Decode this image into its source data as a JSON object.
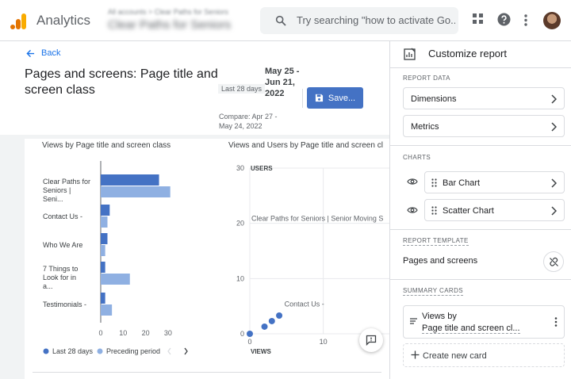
{
  "app": {
    "title": "Analytics",
    "account_crumb": "All accounts > Clear Paths for Seniors",
    "property_name": "Clear Paths for Seniors",
    "search_placeholder": "Try searching \"how to activate Go...",
    "icons": {
      "logo": "analytics-logo",
      "search": "search-icon",
      "apps": "apps-grid-icon",
      "help": "help-icon",
      "more": "more-vert-icon"
    },
    "accent_color": "#1a73e8"
  },
  "header": {
    "back_label": "Back",
    "page_title": "Pages and screens: Page title and screen class",
    "range_chip": "Last 28 days",
    "date_range": "May 25 - Jun 21, 2022",
    "compare": "Compare: Apr 27 - May 24, 2022",
    "save_label": "Save..."
  },
  "bar_chart": {
    "title": "Views by Page title and screen class",
    "legend": [
      "Last 28 days",
      "Preceding period"
    ]
  },
  "scatter_chart": {
    "title": "Views and Users by Page title and screen cl",
    "y_axis_label": "USERS",
    "x_axis_label": "VIEWS"
  },
  "chart_data": [
    {
      "type": "bar",
      "orientation": "horizontal",
      "title": "Views by Page title and screen class",
      "categories": [
        "Clear Paths for Seniors | Seni...",
        "Contact Us -",
        "Who We Are",
        "7 Things to Look for in a...",
        "Testimonials -"
      ],
      "series": [
        {
          "name": "Last 28 days",
          "color": "#4472c4",
          "values": [
            26,
            4,
            3,
            2,
            2
          ]
        },
        {
          "name": "Preceding period",
          "color": "#8fb0e2",
          "values": [
            31,
            3,
            2,
            13,
            5
          ]
        }
      ],
      "xlim": [
        0,
        35
      ],
      "xticks": [
        0,
        10,
        20,
        30
      ],
      "legend_position": "bottom-left"
    },
    {
      "type": "scatter",
      "title": "Views and Users by Page title and screen cl",
      "xlabel": "VIEWS",
      "ylabel": "USERS",
      "xlim": [
        0,
        19
      ],
      "ylim": [
        0,
        30
      ],
      "xticks": [
        0,
        10
      ],
      "yticks": [
        0,
        10,
        20,
        30
      ],
      "points": [
        {
          "x": 0,
          "y": 0
        },
        {
          "x": 2,
          "y": 1.3
        },
        {
          "x": 3,
          "y": 2.3
        },
        {
          "x": 4,
          "y": 3.3
        }
      ],
      "annotations": [
        {
          "label": "Clear Paths for Seniors | Senior Moving S",
          "x": 0,
          "y": 20
        },
        {
          "label": "Contact Us -",
          "x": 4.5,
          "y": 4.5
        }
      ],
      "point_color": "#4472c4",
      "grid": true
    }
  ],
  "panel": {
    "title": "Customize report",
    "report_data_label": "REPORT DATA",
    "dimensions_label": "Dimensions",
    "metrics_label": "Metrics",
    "charts_label": "CHARTS",
    "charts": [
      {
        "label": "Bar Chart"
      },
      {
        "label": "Scatter Chart"
      }
    ],
    "report_template_label": "REPORT TEMPLATE",
    "template_name": "Pages and screens",
    "summary_cards_label": "SUMMARY CARDS",
    "summary_card": {
      "line1": "Views by",
      "line2": "Page title and screen cl..."
    },
    "create_card_label": "Create new card"
  }
}
